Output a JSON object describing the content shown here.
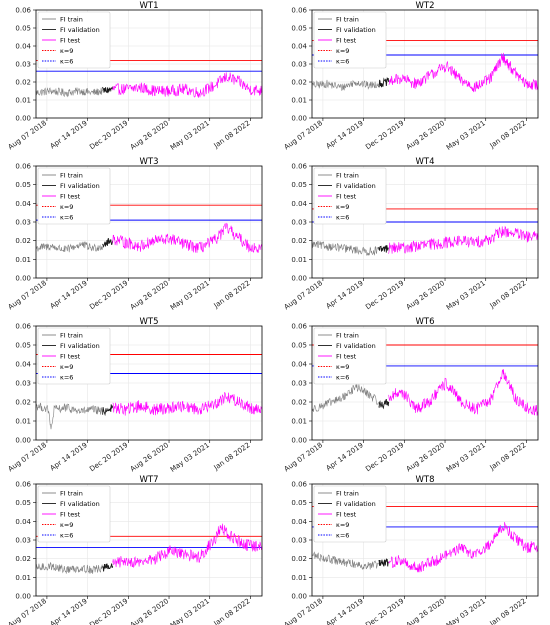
{
  "legend_labels": {
    "train": "FI train",
    "validation": "FI validation",
    "test": "FI test",
    "k9": "κ=9",
    "k6": "κ=6"
  },
  "colors": {
    "train": "#7f7f7f",
    "validation": "#1a1a1a",
    "test": "#ff00ff",
    "k9": "#ff0000",
    "k6": "#0000ff",
    "grid": "#e6e6e6",
    "axis": "#000000"
  },
  "chart_data": [
    {
      "type": "line",
      "title": "WT1",
      "xlabel": "",
      "ylabel": "",
      "ylim": [
        0,
        0.06
      ],
      "yticks": [
        0.0,
        0.01,
        0.02,
        0.03,
        0.04,
        0.05,
        0.06
      ],
      "xrange": [
        "2018-06-01",
        "2022-03-20"
      ],
      "xticks": [
        "Aug 07 2018",
        "Apr 14 2019",
        "Dec 20 2019",
        "Aug 26 2020",
        "May 03 2021",
        "Jan 08 2022"
      ],
      "legend_position": "top-left",
      "grid": true,
      "thresholds": {
        "k9": 0.032,
        "k6": 0.026
      },
      "series": [
        {
          "name": "FI train",
          "key": "train",
          "x": [
            "2018-06-01",
            "2018-09-01",
            "2018-12-01",
            "2019-03-01",
            "2019-05-15",
            "2019-07-15"
          ],
          "y": [
            0.014,
            0.015,
            0.014,
            0.015,
            0.014,
            0.015
          ]
        },
        {
          "name": "FI validation",
          "key": "validation",
          "x": [
            "2019-07-15",
            "2019-09-15"
          ],
          "y": [
            0.015,
            0.016
          ]
        },
        {
          "name": "FI test",
          "key": "test",
          "x": [
            "2019-09-15",
            "2019-12-01",
            "2020-03-01",
            "2020-06-01",
            "2020-09-01",
            "2020-12-01",
            "2021-03-01",
            "2021-06-01",
            "2021-08-15",
            "2021-11-01",
            "2022-01-01",
            "2022-03-20"
          ],
          "y": [
            0.016,
            0.016,
            0.017,
            0.015,
            0.015,
            0.016,
            0.014,
            0.018,
            0.023,
            0.02,
            0.016,
            0.015
          ]
        }
      ]
    },
    {
      "type": "line",
      "title": "WT2",
      "xlabel": "",
      "ylabel": "",
      "ylim": [
        0,
        0.06
      ],
      "yticks": [
        0.0,
        0.01,
        0.02,
        0.03,
        0.04,
        0.05,
        0.06
      ],
      "xrange": [
        "2018-06-01",
        "2022-03-20"
      ],
      "xticks": [
        "Aug 07 2018",
        "Apr 14 2019",
        "Dec 20 2019",
        "Aug 26 2020",
        "May 03 2021",
        "Jan 08 2022"
      ],
      "legend_position": "top-left",
      "grid": true,
      "thresholds": {
        "k9": 0.043,
        "k6": 0.035
      },
      "series": [
        {
          "name": "FI train",
          "key": "train",
          "x": [
            "2018-06-01",
            "2018-09-01",
            "2018-12-01",
            "2019-03-01",
            "2019-05-15",
            "2019-07-15"
          ],
          "y": [
            0.018,
            0.019,
            0.017,
            0.02,
            0.018,
            0.019
          ]
        },
        {
          "name": "FI validation",
          "key": "validation",
          "x": [
            "2019-07-15",
            "2019-09-15"
          ],
          "y": [
            0.019,
            0.02
          ]
        },
        {
          "name": "FI test",
          "key": "test",
          "x": [
            "2019-09-15",
            "2019-12-01",
            "2020-03-01",
            "2020-06-01",
            "2020-09-01",
            "2020-12-01",
            "2021-03-01",
            "2021-06-01",
            "2021-08-15",
            "2021-11-01",
            "2022-01-01",
            "2022-03-20"
          ],
          "y": [
            0.02,
            0.022,
            0.019,
            0.024,
            0.029,
            0.021,
            0.017,
            0.022,
            0.034,
            0.025,
            0.019,
            0.018
          ]
        }
      ]
    },
    {
      "type": "line",
      "title": "WT3",
      "xlabel": "",
      "ylabel": "",
      "ylim": [
        0,
        0.06
      ],
      "yticks": [
        0.0,
        0.01,
        0.02,
        0.03,
        0.04,
        0.05,
        0.06
      ],
      "xrange": [
        "2018-06-01",
        "2022-03-20"
      ],
      "xticks": [
        "Aug 07 2018",
        "Apr 14 2019",
        "Dec 20 2019",
        "Aug 26 2020",
        "May 03 2021",
        "Jan 08 2022"
      ],
      "legend_position": "top-left",
      "grid": true,
      "thresholds": {
        "k9": 0.039,
        "k6": 0.031
      },
      "series": [
        {
          "name": "FI train",
          "key": "train",
          "x": [
            "2018-06-01",
            "2018-09-01",
            "2018-12-01",
            "2019-03-01",
            "2019-05-15",
            "2019-07-15"
          ],
          "y": [
            0.016,
            0.017,
            0.015,
            0.018,
            0.016,
            0.017
          ]
        },
        {
          "name": "FI validation",
          "key": "validation",
          "x": [
            "2019-07-15",
            "2019-09-15"
          ],
          "y": [
            0.018,
            0.02
          ]
        },
        {
          "name": "FI test",
          "key": "test",
          "x": [
            "2019-09-15",
            "2019-12-01",
            "2020-03-01",
            "2020-06-01",
            "2020-09-01",
            "2020-12-01",
            "2021-03-01",
            "2021-06-01",
            "2021-08-15",
            "2021-11-01",
            "2022-01-01",
            "2022-03-20"
          ],
          "y": [
            0.021,
            0.019,
            0.017,
            0.02,
            0.021,
            0.018,
            0.016,
            0.02,
            0.027,
            0.021,
            0.017,
            0.015
          ]
        }
      ]
    },
    {
      "type": "line",
      "title": "WT4",
      "xlabel": "",
      "ylabel": "",
      "ylim": [
        0,
        0.06
      ],
      "yticks": [
        0.0,
        0.01,
        0.02,
        0.03,
        0.04,
        0.05,
        0.06
      ],
      "xrange": [
        "2018-06-01",
        "2022-03-20"
      ],
      "xticks": [
        "Aug 07 2018",
        "Apr 14 2019",
        "Dec 20 2019",
        "Aug 26 2020",
        "May 03 2021",
        "Jan 08 2022"
      ],
      "legend_position": "top-left",
      "grid": true,
      "thresholds": {
        "k9": 0.037,
        "k6": 0.03
      },
      "series": [
        {
          "name": "FI train",
          "key": "train",
          "x": [
            "2018-06-01",
            "2018-09-01",
            "2018-12-01",
            "2019-03-01",
            "2019-05-15",
            "2019-07-15"
          ],
          "y": [
            0.018,
            0.017,
            0.016,
            0.015,
            0.014,
            0.015
          ]
        },
        {
          "name": "FI validation",
          "key": "validation",
          "x": [
            "2019-07-15",
            "2019-09-15"
          ],
          "y": [
            0.015,
            0.016
          ]
        },
        {
          "name": "FI test",
          "key": "test",
          "x": [
            "2019-09-15",
            "2019-12-01",
            "2020-03-01",
            "2020-06-01",
            "2020-09-01",
            "2020-12-01",
            "2021-03-01",
            "2021-06-01",
            "2021-08-15",
            "2021-11-01",
            "2022-01-01",
            "2022-03-20"
          ],
          "y": [
            0.016,
            0.016,
            0.017,
            0.018,
            0.019,
            0.02,
            0.019,
            0.021,
            0.025,
            0.024,
            0.022,
            0.022
          ]
        }
      ]
    },
    {
      "type": "line",
      "title": "WT5",
      "xlabel": "",
      "ylabel": "",
      "ylim": [
        0,
        0.06
      ],
      "yticks": [
        0.0,
        0.01,
        0.02,
        0.03,
        0.04,
        0.05,
        0.06
      ],
      "xrange": [
        "2018-06-01",
        "2022-03-20"
      ],
      "xticks": [
        "Aug 07 2018",
        "Apr 14 2019",
        "Dec 20 2019",
        "Aug 26 2020",
        "May 03 2021",
        "Jan 08 2022"
      ],
      "legend_position": "top-left",
      "grid": true,
      "thresholds": {
        "k9": 0.045,
        "k6": 0.035
      },
      "series": [
        {
          "name": "FI train",
          "key": "train",
          "x": [
            "2018-06-01",
            "2018-07-15",
            "2018-08-15",
            "2018-09-01",
            "2018-09-20",
            "2018-12-01",
            "2019-03-01",
            "2019-05-15",
            "2019-07-15"
          ],
          "y": [
            0.018,
            0.017,
            0.016,
            0.005,
            0.016,
            0.017,
            0.015,
            0.016,
            0.015
          ]
        },
        {
          "name": "FI validation",
          "key": "validation",
          "x": [
            "2019-07-15",
            "2019-09-15"
          ],
          "y": [
            0.015,
            0.017
          ]
        },
        {
          "name": "FI test",
          "key": "test",
          "x": [
            "2019-09-15",
            "2019-12-01",
            "2020-03-01",
            "2020-06-01",
            "2020-09-01",
            "2020-12-01",
            "2021-03-01",
            "2021-06-01",
            "2021-08-15",
            "2021-11-01",
            "2022-01-01",
            "2022-03-20"
          ],
          "y": [
            0.017,
            0.016,
            0.018,
            0.016,
            0.017,
            0.018,
            0.016,
            0.019,
            0.023,
            0.02,
            0.017,
            0.016
          ]
        }
      ]
    },
    {
      "type": "line",
      "title": "WT6",
      "xlabel": "",
      "ylabel": "",
      "ylim": [
        0,
        0.06
      ],
      "yticks": [
        0.0,
        0.01,
        0.02,
        0.03,
        0.04,
        0.05,
        0.06
      ],
      "xrange": [
        "2018-06-01",
        "2022-03-20"
      ],
      "xticks": [
        "Aug 07 2018",
        "Apr 14 2019",
        "Dec 20 2019",
        "Aug 26 2020",
        "May 03 2021",
        "Jan 08 2022"
      ],
      "legend_position": "top-left",
      "grid": true,
      "thresholds": {
        "k9": 0.05,
        "k6": 0.039
      },
      "series": [
        {
          "name": "FI train",
          "key": "train",
          "x": [
            "2018-06-01",
            "2018-09-01",
            "2018-12-01",
            "2019-03-01",
            "2019-05-15",
            "2019-07-15"
          ],
          "y": [
            0.016,
            0.019,
            0.022,
            0.028,
            0.024,
            0.02
          ]
        },
        {
          "name": "FI validation",
          "key": "validation",
          "x": [
            "2019-07-15",
            "2019-09-15"
          ],
          "y": [
            0.018,
            0.02
          ]
        },
        {
          "name": "FI test",
          "key": "test",
          "x": [
            "2019-09-15",
            "2019-12-01",
            "2020-03-01",
            "2020-06-01",
            "2020-09-01",
            "2020-12-01",
            "2021-03-01",
            "2021-06-01",
            "2021-08-15",
            "2021-11-01",
            "2022-01-01",
            "2022-03-20"
          ],
          "y": [
            0.022,
            0.026,
            0.016,
            0.021,
            0.03,
            0.02,
            0.016,
            0.021,
            0.036,
            0.022,
            0.017,
            0.015
          ]
        }
      ]
    },
    {
      "type": "line",
      "title": "WT7",
      "xlabel": "",
      "ylabel": "",
      "ylim": [
        0,
        0.06
      ],
      "yticks": [
        0.0,
        0.01,
        0.02,
        0.03,
        0.04,
        0.05,
        0.06
      ],
      "xrange": [
        "2018-06-01",
        "2022-03-20"
      ],
      "xticks": [
        "Aug 07 2018",
        "Apr 14 2019",
        "Dec 20 2019",
        "Aug 26 2020",
        "May 03 2021",
        "Jan 08 2022"
      ],
      "legend_position": "top-left",
      "grid": true,
      "thresholds": {
        "k9": 0.032,
        "k6": 0.026
      },
      "series": [
        {
          "name": "FI train",
          "key": "train",
          "x": [
            "2018-06-01",
            "2018-09-01",
            "2018-12-01",
            "2019-03-01",
            "2019-05-15",
            "2019-07-15"
          ],
          "y": [
            0.015,
            0.016,
            0.014,
            0.015,
            0.014,
            0.015
          ]
        },
        {
          "name": "FI validation",
          "key": "validation",
          "x": [
            "2019-07-15",
            "2019-09-15"
          ],
          "y": [
            0.015,
            0.016
          ]
        },
        {
          "name": "FI test",
          "key": "test",
          "x": [
            "2019-09-15",
            "2019-12-01",
            "2020-03-01",
            "2020-06-01",
            "2020-09-01",
            "2020-12-01",
            "2021-03-01",
            "2021-06-01",
            "2021-07-15",
            "2021-08-15",
            "2021-11-01",
            "2022-01-01",
            "2022-03-20"
          ],
          "y": [
            0.017,
            0.019,
            0.018,
            0.02,
            0.024,
            0.022,
            0.021,
            0.03,
            0.038,
            0.033,
            0.029,
            0.027,
            0.026
          ]
        }
      ]
    },
    {
      "type": "line",
      "title": "WT8",
      "xlabel": "",
      "ylabel": "",
      "ylim": [
        0,
        0.06
      ],
      "yticks": [
        0.0,
        0.01,
        0.02,
        0.03,
        0.04,
        0.05,
        0.06
      ],
      "xrange": [
        "2018-06-01",
        "2022-03-20"
      ],
      "xticks": [
        "Aug 07 2018",
        "Apr 14 2019",
        "Dec 20 2019",
        "Aug 26 2020",
        "May 03 2021",
        "Jan 08 2022"
      ],
      "legend_position": "top-left",
      "grid": true,
      "thresholds": {
        "k9": 0.048,
        "k6": 0.037
      },
      "series": [
        {
          "name": "FI train",
          "key": "train",
          "x": [
            "2018-06-01",
            "2018-09-01",
            "2018-12-01",
            "2019-03-01",
            "2019-05-15",
            "2019-07-15"
          ],
          "y": [
            0.022,
            0.02,
            0.018,
            0.017,
            0.016,
            0.017
          ]
        },
        {
          "name": "FI validation",
          "key": "validation",
          "x": [
            "2019-07-15",
            "2019-09-15"
          ],
          "y": [
            0.017,
            0.018
          ]
        },
        {
          "name": "FI test",
          "key": "test",
          "x": [
            "2019-09-15",
            "2019-12-01",
            "2020-03-01",
            "2020-06-01",
            "2020-09-01",
            "2020-12-01",
            "2021-03-01",
            "2021-06-01",
            "2021-08-15",
            "2021-11-01",
            "2022-01-01",
            "2022-03-20"
          ],
          "y": [
            0.018,
            0.019,
            0.015,
            0.018,
            0.022,
            0.026,
            0.022,
            0.028,
            0.038,
            0.031,
            0.026,
            0.027
          ]
        }
      ]
    }
  ]
}
